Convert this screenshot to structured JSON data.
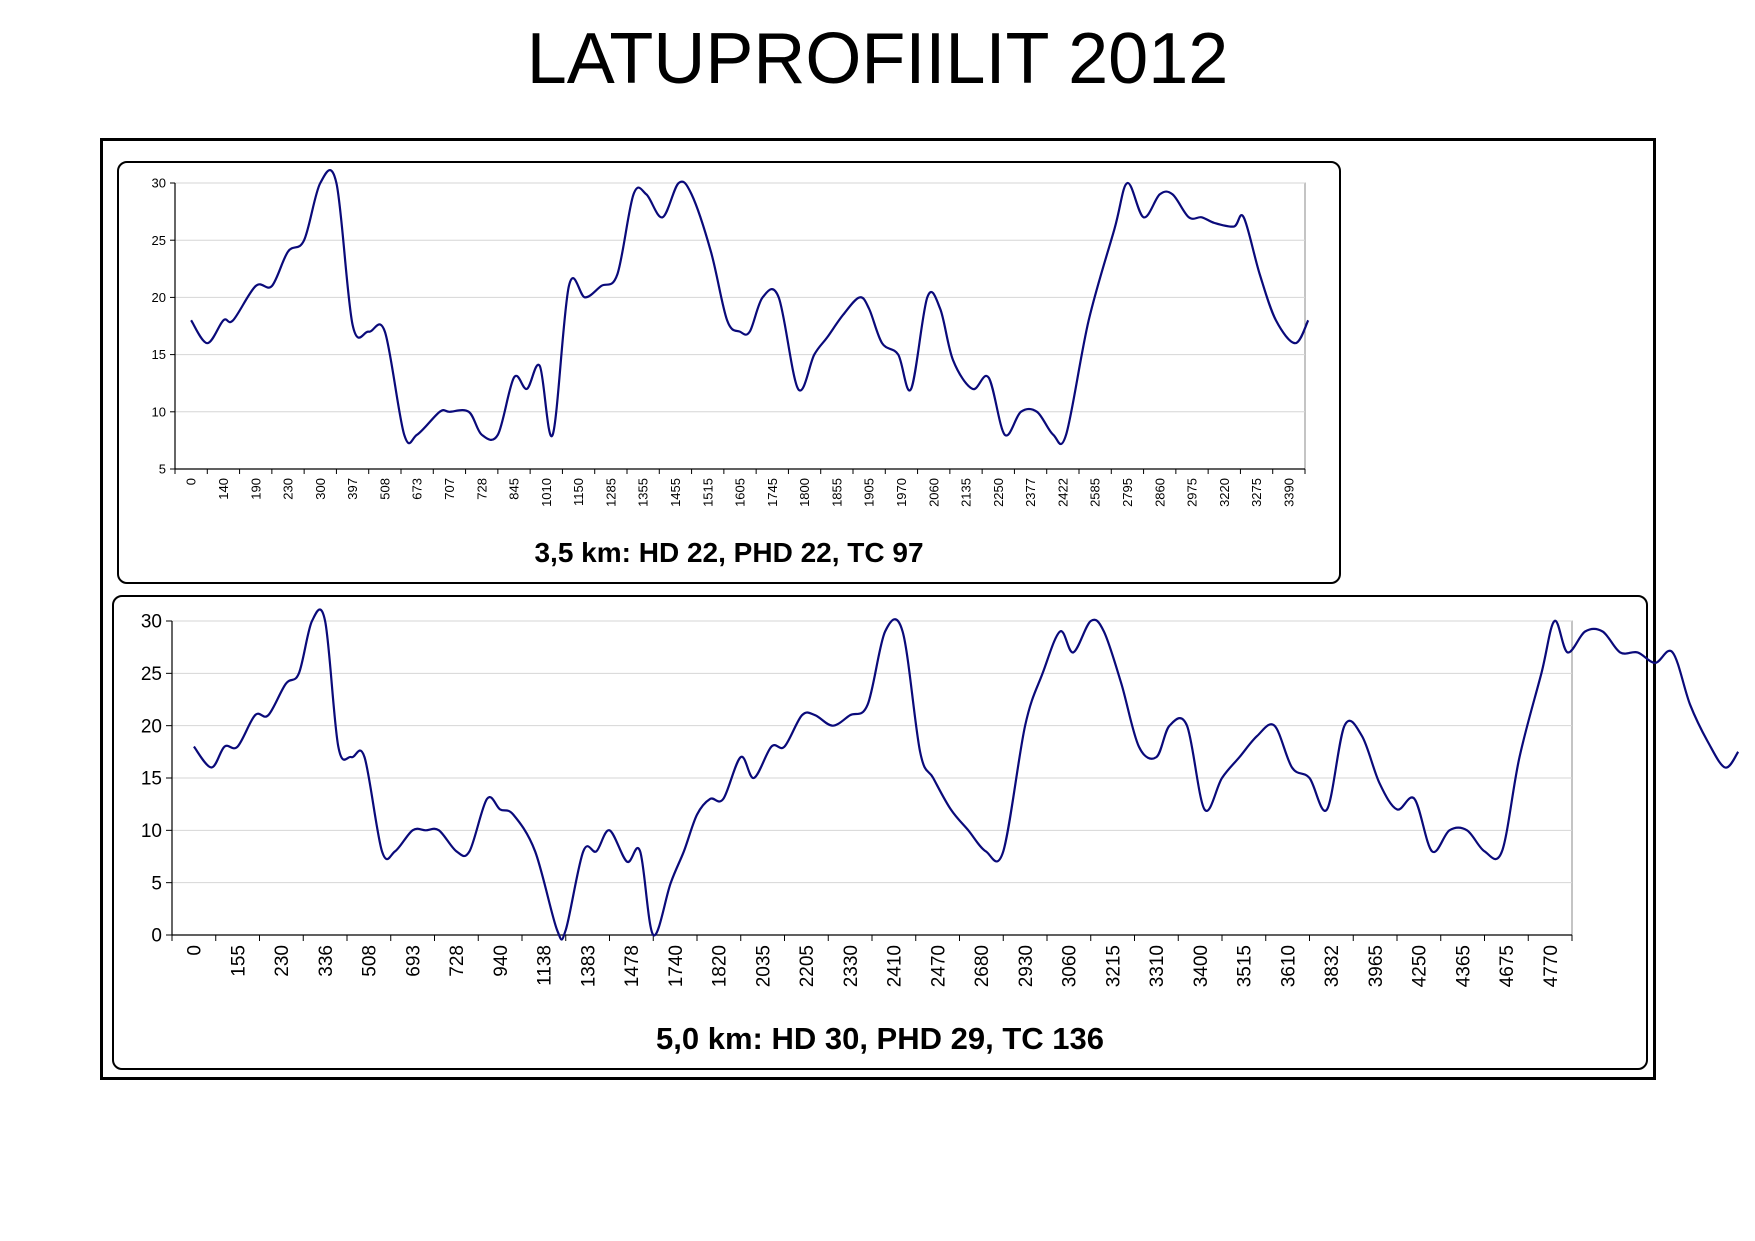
{
  "page": {
    "title": "LATUPROFIILIT 2012"
  },
  "chart_data": [
    {
      "type": "line",
      "caption": "3,5 km: HD 22, PHD 22, TC 97",
      "ylim": [
        5,
        30
      ],
      "yticks": [
        5,
        10,
        15,
        20,
        25,
        30
      ],
      "grid": true,
      "line_color": "#0a0a7a",
      "categories": [
        "0",
        "140",
        "190",
        "230",
        "300",
        "397",
        "508",
        "673",
        "707",
        "728",
        "845",
        "1010",
        "1150",
        "1285",
        "1355",
        "1455",
        "1515",
        "1605",
        "1745",
        "1800",
        "1855",
        "1905",
        "1970",
        "2060",
        "2135",
        "2250",
        "2377",
        "2422",
        "2585",
        "2795",
        "2860",
        "2975",
        "3220",
        "3275",
        "3390"
      ],
      "values": [
        [
          0,
          18
        ],
        [
          0.5,
          16
        ],
        [
          1,
          18
        ],
        [
          1.3,
          18
        ],
        [
          2,
          21
        ],
        [
          2.5,
          21
        ],
        [
          3,
          24
        ],
        [
          3.5,
          25
        ],
        [
          4,
          30
        ],
        [
          4.5,
          30
        ],
        [
          5,
          17.6
        ],
        [
          5.5,
          17
        ],
        [
          6,
          17
        ],
        [
          6.6,
          8
        ],
        [
          7,
          8
        ],
        [
          7.7,
          10
        ],
        [
          8,
          10
        ],
        [
          8.6,
          10
        ],
        [
          9,
          8
        ],
        [
          9.5,
          8
        ],
        [
          10,
          13
        ],
        [
          10.4,
          12
        ],
        [
          10.8,
          14
        ],
        [
          11.2,
          8
        ],
        [
          11.7,
          21
        ],
        [
          12.2,
          20
        ],
        [
          12.7,
          21
        ],
        [
          13.2,
          22
        ],
        [
          13.7,
          29
        ],
        [
          14.1,
          29
        ],
        [
          14.6,
          27
        ],
        [
          15.1,
          30
        ],
        [
          15.5,
          29
        ],
        [
          16.1,
          24
        ],
        [
          16.6,
          18
        ],
        [
          17,
          17
        ],
        [
          17.3,
          17
        ],
        [
          17.7,
          20
        ],
        [
          18.2,
          20
        ],
        [
          18.8,
          12
        ],
        [
          19.3,
          15
        ],
        [
          19.7,
          16.5
        ],
        [
          20.2,
          18.5
        ],
        [
          20.7,
          20
        ],
        [
          21,
          19
        ],
        [
          21.4,
          16
        ],
        [
          21.9,
          15
        ],
        [
          22.3,
          12
        ],
        [
          22.8,
          20
        ],
        [
          23.2,
          19
        ],
        [
          23.6,
          14.5
        ],
        [
          24.2,
          12
        ],
        [
          24.7,
          13
        ],
        [
          25.2,
          8
        ],
        [
          25.7,
          10
        ],
        [
          26.2,
          10
        ],
        [
          26.7,
          8
        ],
        [
          27.1,
          8
        ],
        [
          27.8,
          18
        ],
        [
          28.6,
          26
        ],
        [
          29,
          30
        ],
        [
          29.5,
          27
        ],
        [
          30,
          29
        ],
        [
          30.4,
          29
        ],
        [
          30.9,
          27
        ],
        [
          31.3,
          27
        ],
        [
          31.7,
          26.5
        ],
        [
          32.3,
          26.2
        ],
        [
          32.6,
          27
        ],
        [
          33.1,
          22
        ],
        [
          33.6,
          18
        ],
        [
          34.2,
          16
        ],
        [
          34.6,
          18
        ]
      ]
    },
    {
      "type": "line",
      "caption": "5,0 km: HD 30, PHD 29, TC 136",
      "ylim": [
        0,
        30
      ],
      "yticks": [
        0,
        5,
        10,
        15,
        20,
        25,
        30
      ],
      "grid": true,
      "line_color": "#0a0a7a",
      "categories": [
        "0",
        "155",
        "230",
        "336",
        "508",
        "693",
        "728",
        "940",
        "1138",
        "1383",
        "1478",
        "1740",
        "1820",
        "2035",
        "2205",
        "2330",
        "2410",
        "2470",
        "2680",
        "2930",
        "3060",
        "3215",
        "3310",
        "3400",
        "3515",
        "3610",
        "3832",
        "3965",
        "4250",
        "4365",
        "4675",
        "4770"
      ],
      "values": [
        [
          0,
          18
        ],
        [
          0.4,
          16
        ],
        [
          0.7,
          18
        ],
        [
          1,
          18
        ],
        [
          1.4,
          21
        ],
        [
          1.7,
          21
        ],
        [
          2.1,
          24
        ],
        [
          2.4,
          25
        ],
        [
          2.7,
          30
        ],
        [
          3,
          30
        ],
        [
          3.3,
          18
        ],
        [
          3.6,
          17
        ],
        [
          3.9,
          17
        ],
        [
          4.3,
          8
        ],
        [
          4.6,
          8
        ],
        [
          5,
          10
        ],
        [
          5.3,
          10
        ],
        [
          5.6,
          10
        ],
        [
          6,
          8
        ],
        [
          6.3,
          8
        ],
        [
          6.7,
          13
        ],
        [
          7,
          12
        ],
        [
          7.3,
          11.5
        ],
        [
          7.8,
          8
        ],
        [
          8.3,
          0.5
        ],
        [
          8.5,
          0.5
        ],
        [
          8.9,
          8
        ],
        [
          9.2,
          8
        ],
        [
          9.5,
          10
        ],
        [
          9.9,
          7
        ],
        [
          10.2,
          8
        ],
        [
          10.5,
          0
        ],
        [
          10.9,
          5
        ],
        [
          11.2,
          8
        ],
        [
          11.5,
          11.5
        ],
        [
          11.8,
          13
        ],
        [
          12.1,
          13
        ],
        [
          12.5,
          17
        ],
        [
          12.8,
          15
        ],
        [
          13.2,
          18
        ],
        [
          13.5,
          18
        ],
        [
          13.9,
          21
        ],
        [
          14.2,
          21
        ],
        [
          14.6,
          20
        ],
        [
          15,
          21
        ],
        [
          15.4,
          22
        ],
        [
          15.8,
          29
        ],
        [
          16.2,
          29
        ],
        [
          16.6,
          17.5
        ],
        [
          16.9,
          15
        ],
        [
          17.3,
          12
        ],
        [
          17.7,
          10
        ],
        [
          18.1,
          8
        ],
        [
          18.5,
          8
        ],
        [
          19,
          20
        ],
        [
          19.4,
          25
        ],
        [
          19.8,
          29
        ],
        [
          20.1,
          27
        ],
        [
          20.5,
          30
        ],
        [
          20.8,
          29
        ],
        [
          21.2,
          24
        ],
        [
          21.6,
          18
        ],
        [
          22,
          17
        ],
        [
          22.3,
          20
        ],
        [
          22.7,
          20
        ],
        [
          23.1,
          12
        ],
        [
          23.5,
          15
        ],
        [
          23.9,
          17
        ],
        [
          24.3,
          19
        ],
        [
          24.7,
          20
        ],
        [
          25.1,
          16
        ],
        [
          25.5,
          15
        ],
        [
          25.9,
          12
        ],
        [
          26.3,
          20
        ],
        [
          26.7,
          19
        ],
        [
          27.1,
          14.5
        ],
        [
          27.5,
          12
        ],
        [
          27.9,
          13
        ],
        [
          28.3,
          8
        ],
        [
          28.7,
          10
        ],
        [
          29.1,
          10
        ],
        [
          29.5,
          8
        ],
        [
          29.9,
          8
        ],
        [
          30.3,
          17
        ],
        [
          30.8,
          25
        ],
        [
          31.1,
          30
        ],
        [
          31.4,
          27
        ],
        [
          31.8,
          29
        ],
        [
          32.2,
          29
        ],
        [
          32.6,
          27
        ],
        [
          33,
          27
        ],
        [
          33.4,
          26
        ],
        [
          33.8,
          27
        ],
        [
          34.2,
          22
        ],
        [
          34.6,
          18.5
        ],
        [
          35,
          16
        ],
        [
          35.3,
          17.5
        ]
      ]
    }
  ]
}
